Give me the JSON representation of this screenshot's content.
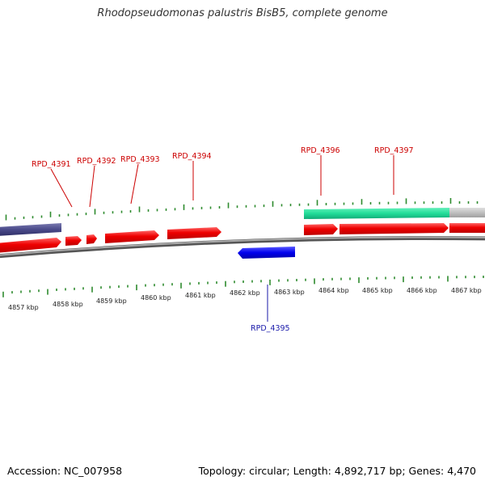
{
  "title": "Rhodopseudomonas palustris BisB5, complete genome",
  "footer": {
    "accession": "Accession: NC_007958",
    "summary": "Topology: circular; Length: 4,892,717 bp; Genes: 4,470"
  },
  "colors": {
    "forward_gene": "#ff0000",
    "reverse_gene": "#0000ff",
    "gene_label_forward": "#cc0000",
    "gene_label_reverse": "#1a1aaa",
    "tick": "#2e8b2e",
    "backbone": "#888888",
    "purple_feature": "#4a4a8a",
    "green_feature": "#22dd99",
    "gray_feature": "#c0c0c0"
  },
  "scale": {
    "unit": "kbp",
    "labels": [
      "4857 kbp",
      "4858 kbp",
      "4859 kbp",
      "4860 kbp",
      "4861 kbp",
      "4862 kbp",
      "4863 kbp",
      "4864 kbp",
      "4865 kbp",
      "4866 kbp",
      "4867 kbp"
    ]
  },
  "gene_labels": {
    "forward": [
      "RPD_4391",
      "RPD_4392",
      "RPD_4393",
      "RPD_4394",
      "RPD_4396",
      "RPD_4397"
    ],
    "reverse": [
      "RPD_4395"
    ]
  }
}
